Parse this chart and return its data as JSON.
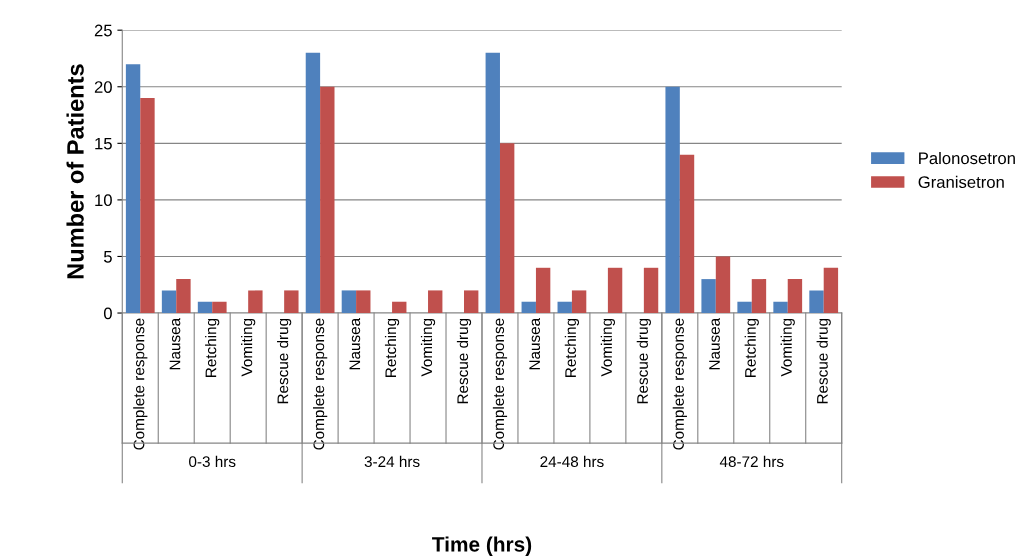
{
  "chart_data": {
    "type": "bar",
    "xlabel": "Time (hrs)",
    "ylabel": "Number of Patients",
    "categories": [
      "Complete response",
      "Nausea",
      "Retching",
      "Vomiting",
      "Rescue drug",
      "Complete response",
      "Nausea",
      "Retching",
      "Vomiting",
      "Rescue drug",
      "Complete response",
      "Nausea",
      "Retching",
      "Vomiting",
      "Rescue drug",
      "Complete response",
      "Nausea",
      "Retching",
      "Vomiting",
      "Rescue drug"
    ],
    "annotations": [
      "0-3 hrs",
      "3-24 hrs",
      "24-48 hrs",
      "48-72 hrs"
    ],
    "series": [
      {
        "name": "Palonosetron",
        "color": "#4f81bd",
        "values": [
          22,
          2,
          1,
          0,
          0,
          23,
          2,
          0,
          0,
          0,
          23,
          1,
          1,
          0,
          0,
          20,
          3,
          1,
          1,
          2
        ]
      },
      {
        "name": "Granisetron",
        "color": "#c0504d",
        "values": [
          19,
          3,
          1,
          2,
          2,
          20,
          2,
          1,
          2,
          2,
          15,
          4,
          2,
          4,
          4,
          14,
          5,
          3,
          3,
          4
        ]
      }
    ],
    "ylim": [
      0,
      25
    ],
    "yticks": [
      0,
      5,
      10,
      15,
      20,
      25
    ],
    "grid": "y",
    "legend": "right"
  }
}
